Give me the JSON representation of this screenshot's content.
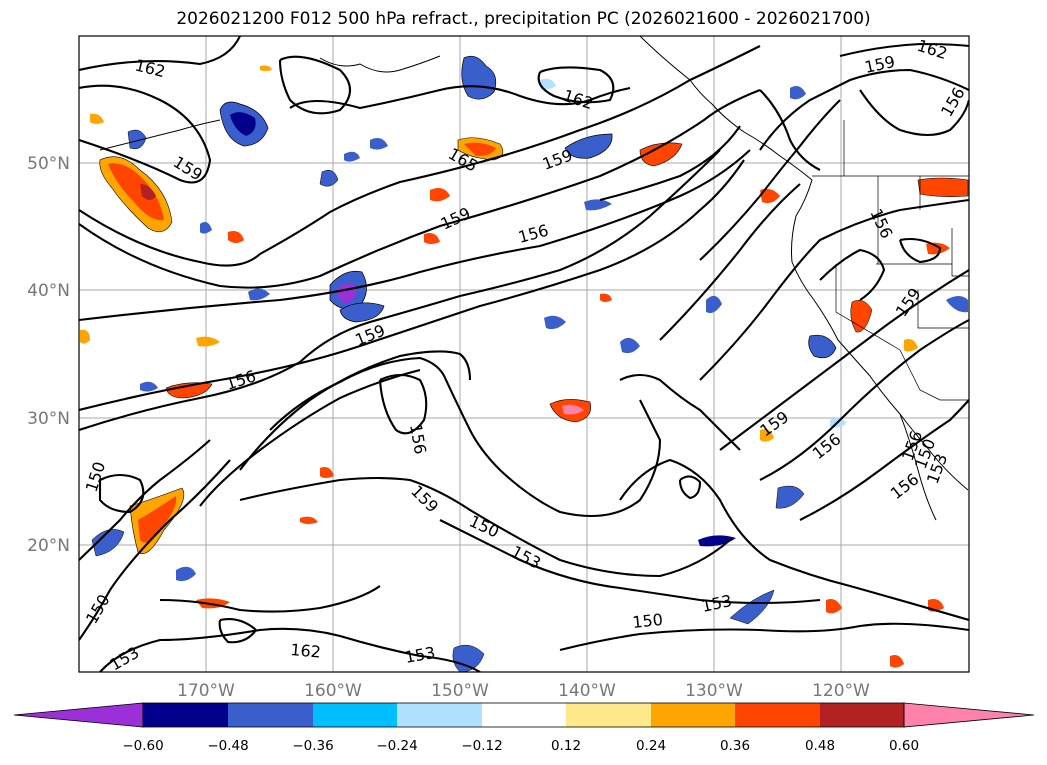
{
  "title": "2026021200 F012 500 hPa refract., precipitation PC (2026021600 - 2026021700)",
  "lat_labels": [
    "50°N",
    "40°N",
    "30°N",
    "20°N"
  ],
  "lon_labels": [
    "170°W",
    "160°W",
    "150°W",
    "140°W",
    "130°W",
    "120°W"
  ],
  "contour_labels": [
    "162",
    "159",
    "165",
    "162",
    "156",
    "159",
    "159",
    "156",
    "159",
    "156",
    "153",
    "150",
    "159",
    "156",
    "150",
    "153",
    "159",
    "156",
    "162",
    "153",
    "150",
    "153",
    "159",
    "156",
    "156",
    "150",
    "150",
    "153",
    "156",
    "162",
    "159"
  ],
  "colorbar": {
    "ticks": [
      "−0.60",
      "−0.48",
      "−0.36",
      "−0.24",
      "−0.12",
      "0.12",
      "0.24",
      "0.36",
      "0.48",
      "0.60"
    ],
    "colors": [
      "#9b30d8",
      "#00008b",
      "#3a5fcd",
      "#00bfff",
      "#b0e2ff",
      "#ffffff",
      "#ffe98a",
      "#ffa500",
      "#ff4500",
      "#b22222",
      "#ff82ab"
    ]
  },
  "map_extent": {
    "lon_min": -180,
    "lon_max": -110,
    "lat_min": 10,
    "lat_max": 60
  }
}
